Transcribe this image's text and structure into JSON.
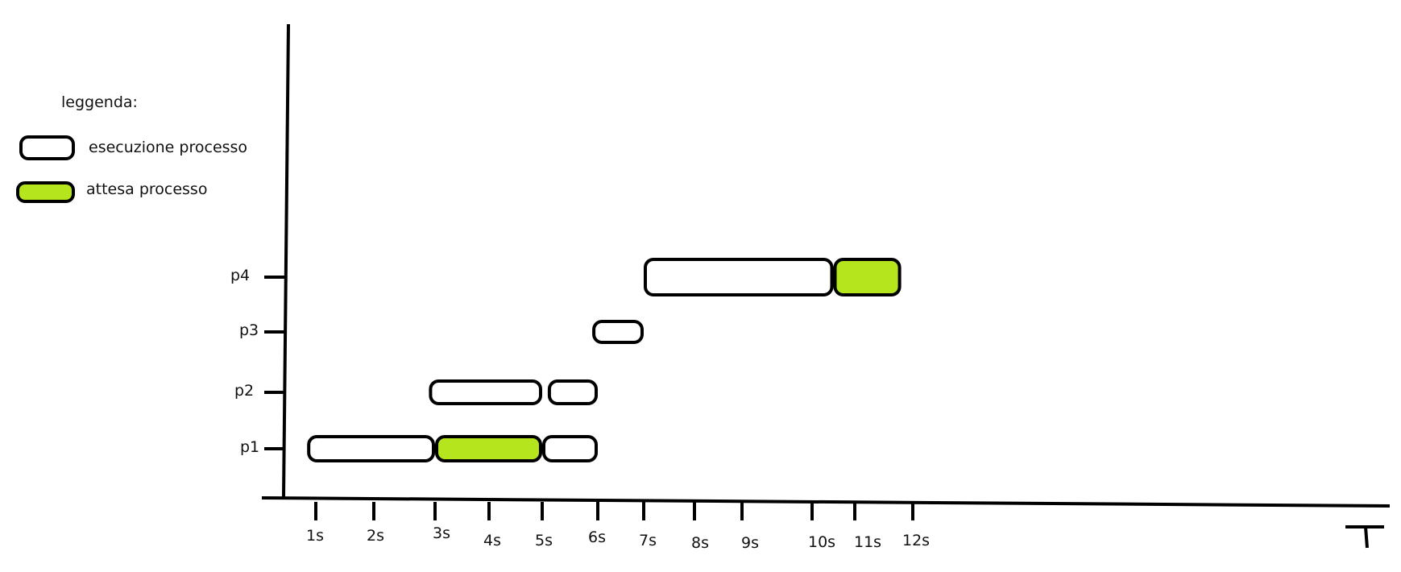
{
  "legend": {
    "title": "leggenda:",
    "items": [
      {
        "label": "esecuzione processo",
        "kind": "exec",
        "color": "#ffffff"
      },
      {
        "label": "attesa processo",
        "kind": "wait",
        "color": "#b5e61d"
      }
    ]
  },
  "y_labels": [
    "p1",
    "p2",
    "p3",
    "p4"
  ],
  "x_labels": [
    "1s",
    "2s",
    "3s",
    "4s",
    "5s",
    "6s",
    "7s",
    "8s",
    "9s",
    "10s",
    "11s",
    "12s"
  ],
  "axis_end_label": "T",
  "colors": {
    "stroke": "#000000",
    "exec_fill": "#ffffff",
    "wait_fill": "#b5e61d"
  },
  "bars": [
    {
      "process": "p1",
      "kind": "exec",
      "start": 0.7,
      "end": 3.0
    },
    {
      "process": "p1",
      "kind": "wait",
      "start": 3.0,
      "end": 5.0
    },
    {
      "process": "p1",
      "kind": "exec",
      "start": 5.0,
      "end": 6.0
    },
    {
      "process": "p2",
      "kind": "exec",
      "start": 2.9,
      "end": 5.0
    },
    {
      "process": "p2",
      "kind": "exec",
      "start": 5.1,
      "end": 6.0
    },
    {
      "process": "p3",
      "kind": "exec",
      "start": 5.9,
      "end": 7.0
    },
    {
      "process": "p4",
      "kind": "exec",
      "start": 7.0,
      "end": 10.5
    },
    {
      "process": "p4",
      "kind": "wait",
      "start": 10.5,
      "end": 11.8
    }
  ]
}
